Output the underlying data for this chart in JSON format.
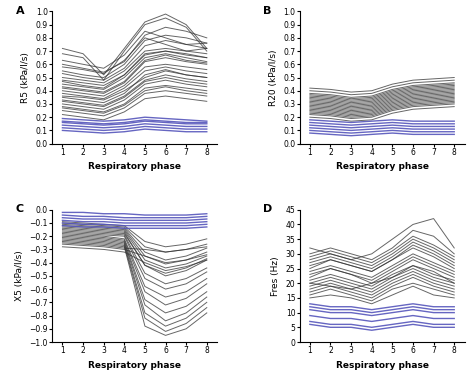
{
  "x": [
    1,
    2,
    3,
    4,
    5,
    6,
    7,
    8
  ],
  "xlim": [
    0.5,
    8.5
  ],
  "xticks": [
    1,
    2,
    3,
    4,
    5,
    6,
    7,
    8
  ],
  "xlabel": "Respiratory phase",
  "panels": {
    "A": {
      "label": "A",
      "ylabel": "R5 (kPa/l/s)",
      "ylim": [
        0.0,
        1.0
      ],
      "yticks": [
        0.0,
        0.1,
        0.2,
        0.3,
        0.4,
        0.5,
        0.6,
        0.7,
        0.8,
        0.9,
        1.0
      ],
      "black_lines": [
        [
          0.36,
          0.35,
          0.33,
          0.4,
          0.5,
          0.55,
          0.52,
          0.5
        ],
        [
          0.4,
          0.38,
          0.36,
          0.44,
          0.58,
          0.6,
          0.58,
          0.56
        ],
        [
          0.45,
          0.43,
          0.41,
          0.5,
          0.65,
          0.68,
          0.65,
          0.62
        ],
        [
          0.5,
          0.48,
          0.46,
          0.55,
          0.7,
          0.72,
          0.7,
          0.68
        ],
        [
          0.3,
          0.28,
          0.26,
          0.33,
          0.45,
          0.48,
          0.45,
          0.43
        ],
        [
          0.28,
          0.26,
          0.24,
          0.3,
          0.42,
          0.44,
          0.42,
          0.4
        ],
        [
          0.55,
          0.52,
          0.5,
          0.6,
          0.78,
          0.82,
          0.8,
          0.76
        ],
        [
          0.6,
          0.57,
          0.54,
          0.62,
          0.82,
          0.88,
          0.85,
          0.8
        ],
        [
          0.33,
          0.31,
          0.29,
          0.36,
          0.48,
          0.52,
          0.49,
          0.47
        ],
        [
          0.38,
          0.36,
          0.34,
          0.42,
          0.55,
          0.58,
          0.55,
          0.53
        ],
        [
          0.42,
          0.4,
          0.38,
          0.46,
          0.62,
          0.65,
          0.62,
          0.6
        ],
        [
          0.48,
          0.46,
          0.44,
          0.52,
          0.68,
          0.7,
          0.68,
          0.65
        ],
        [
          0.25,
          0.23,
          0.21,
          0.27,
          0.38,
          0.4,
          0.38,
          0.36
        ],
        [
          0.22,
          0.2,
          0.18,
          0.24,
          0.34,
          0.36,
          0.34,
          0.32
        ],
        [
          0.58,
          0.56,
          0.53,
          0.63,
          0.8,
          0.75,
          0.7,
          0.72
        ],
        [
          0.63,
          0.6,
          0.57,
          0.67,
          0.85,
          0.8,
          0.75,
          0.76
        ],
        [
          0.68,
          0.65,
          0.48,
          0.7,
          0.9,
          0.95,
          0.88,
          0.7
        ],
        [
          0.72,
          0.68,
          0.52,
          0.72,
          0.92,
          0.98,
          0.9,
          0.72
        ],
        [
          0.35,
          0.33,
          0.31,
          0.38,
          0.52,
          0.56,
          0.52,
          0.5
        ],
        [
          0.43,
          0.41,
          0.39,
          0.47,
          0.63,
          0.67,
          0.63,
          0.61
        ],
        [
          0.32,
          0.3,
          0.28,
          0.35,
          0.47,
          0.5,
          0.47,
          0.45
        ],
        [
          0.27,
          0.25,
          0.23,
          0.29,
          0.4,
          0.43,
          0.4,
          0.38
        ],
        [
          0.53,
          0.5,
          0.48,
          0.57,
          0.74,
          0.78,
          0.75,
          0.72
        ],
        [
          0.47,
          0.44,
          0.42,
          0.52,
          0.67,
          0.7,
          0.67,
          0.65
        ]
      ],
      "blue_lines": [
        [
          0.19,
          0.18,
          0.17,
          0.18,
          0.2,
          0.19,
          0.18,
          0.17
        ],
        [
          0.16,
          0.15,
          0.14,
          0.15,
          0.17,
          0.16,
          0.15,
          0.15
        ],
        [
          0.14,
          0.13,
          0.12,
          0.13,
          0.15,
          0.14,
          0.13,
          0.13
        ],
        [
          0.12,
          0.11,
          0.1,
          0.11,
          0.13,
          0.12,
          0.11,
          0.11
        ],
        [
          0.1,
          0.09,
          0.08,
          0.09,
          0.11,
          0.1,
          0.09,
          0.09
        ],
        [
          0.17,
          0.16,
          0.15,
          0.16,
          0.18,
          0.17,
          0.16,
          0.16
        ]
      ]
    },
    "B": {
      "label": "B",
      "ylabel": "R20 (kPa/l/s)",
      "ylim": [
        0.0,
        1.0
      ],
      "yticks": [
        0.0,
        0.1,
        0.2,
        0.3,
        0.4,
        0.5,
        0.6,
        0.7,
        0.8,
        0.9,
        1.0
      ],
      "black_lines": [
        [
          0.27,
          0.26,
          0.24,
          0.25,
          0.3,
          0.33,
          0.34,
          0.35
        ],
        [
          0.3,
          0.29,
          0.27,
          0.28,
          0.33,
          0.36,
          0.37,
          0.38
        ],
        [
          0.33,
          0.32,
          0.3,
          0.31,
          0.36,
          0.39,
          0.4,
          0.41
        ],
        [
          0.25,
          0.24,
          0.22,
          0.23,
          0.28,
          0.31,
          0.32,
          0.33
        ],
        [
          0.22,
          0.21,
          0.19,
          0.2,
          0.25,
          0.28,
          0.29,
          0.3
        ],
        [
          0.38,
          0.37,
          0.35,
          0.36,
          0.41,
          0.44,
          0.45,
          0.46
        ],
        [
          0.36,
          0.35,
          0.33,
          0.34,
          0.39,
          0.42,
          0.43,
          0.44
        ],
        [
          0.2,
          0.19,
          0.17,
          0.18,
          0.23,
          0.26,
          0.27,
          0.28
        ],
        [
          0.28,
          0.27,
          0.25,
          0.26,
          0.31,
          0.34,
          0.35,
          0.36
        ],
        [
          0.35,
          0.34,
          0.32,
          0.33,
          0.38,
          0.41,
          0.42,
          0.43
        ],
        [
          0.4,
          0.39,
          0.37,
          0.38,
          0.43,
          0.46,
          0.47,
          0.48
        ],
        [
          0.42,
          0.41,
          0.39,
          0.4,
          0.45,
          0.48,
          0.49,
          0.5
        ],
        [
          0.23,
          0.22,
          0.2,
          0.21,
          0.26,
          0.29,
          0.3,
          0.31
        ],
        [
          0.32,
          0.31,
          0.29,
          0.3,
          0.35,
          0.38,
          0.39,
          0.4
        ],
        [
          0.26,
          0.25,
          0.23,
          0.24,
          0.29,
          0.32,
          0.33,
          0.34
        ],
        [
          0.24,
          0.23,
          0.21,
          0.22,
          0.27,
          0.3,
          0.31,
          0.32
        ],
        [
          0.37,
          0.36,
          0.34,
          0.35,
          0.4,
          0.43,
          0.44,
          0.45
        ],
        [
          0.29,
          0.28,
          0.26,
          0.27,
          0.32,
          0.35,
          0.36,
          0.37
        ],
        [
          0.31,
          0.3,
          0.28,
          0.29,
          0.34,
          0.37,
          0.38,
          0.39
        ],
        [
          0.34,
          0.33,
          0.31,
          0.32,
          0.37,
          0.4,
          0.41,
          0.42
        ]
      ],
      "blue_lines": [
        [
          0.16,
          0.15,
          0.14,
          0.15,
          0.16,
          0.15,
          0.15,
          0.15
        ],
        [
          0.14,
          0.13,
          0.12,
          0.13,
          0.14,
          0.13,
          0.13,
          0.13
        ],
        [
          0.12,
          0.11,
          0.1,
          0.11,
          0.12,
          0.11,
          0.11,
          0.11
        ],
        [
          0.1,
          0.09,
          0.08,
          0.09,
          0.1,
          0.09,
          0.09,
          0.09
        ],
        [
          0.18,
          0.17,
          0.16,
          0.17,
          0.18,
          0.17,
          0.17,
          0.17
        ],
        [
          0.08,
          0.07,
          0.06,
          0.07,
          0.08,
          0.07,
          0.07,
          0.07
        ]
      ]
    },
    "C": {
      "label": "C",
      "ylabel": "X5 (kPa/l/s)",
      "ylim": [
        -1.0,
        0.0
      ],
      "yticks": [
        -1.0,
        -0.9,
        -0.8,
        -0.7,
        -0.6,
        -0.5,
        -0.4,
        -0.3,
        -0.2,
        -0.1,
        0.0
      ],
      "black_lines": [
        [
          -0.1,
          -0.11,
          -0.12,
          -0.13,
          -0.28,
          -0.32,
          -0.3,
          -0.26
        ],
        [
          -0.13,
          -0.14,
          -0.15,
          -0.16,
          -0.38,
          -0.44,
          -0.41,
          -0.35
        ],
        [
          -0.16,
          -0.17,
          -0.18,
          -0.19,
          -0.48,
          -0.56,
          -0.52,
          -0.44
        ],
        [
          -0.18,
          -0.19,
          -0.2,
          -0.22,
          -0.58,
          -0.66,
          -0.62,
          -0.52
        ],
        [
          -0.2,
          -0.21,
          -0.22,
          -0.24,
          -0.68,
          -0.78,
          -0.73,
          -0.62
        ],
        [
          -0.22,
          -0.23,
          -0.24,
          -0.26,
          -0.78,
          -0.88,
          -0.82,
          -0.7
        ],
        [
          -0.24,
          -0.25,
          -0.26,
          -0.28,
          -0.88,
          -0.95,
          -0.9,
          -0.78
        ],
        [
          -0.15,
          -0.16,
          -0.17,
          -0.18,
          -0.42,
          -0.5,
          -0.46,
          -0.38
        ],
        [
          -0.19,
          -0.2,
          -0.21,
          -0.23,
          -0.62,
          -0.72,
          -0.67,
          -0.56
        ],
        [
          -0.21,
          -0.22,
          -0.23,
          -0.25,
          -0.72,
          -0.84,
          -0.78,
          -0.66
        ],
        [
          -0.23,
          -0.24,
          -0.25,
          -0.27,
          -0.82,
          -0.92,
          -0.86,
          -0.74
        ],
        [
          -0.11,
          -0.12,
          -0.13,
          -0.14,
          -0.32,
          -0.38,
          -0.35,
          -0.29
        ],
        [
          -0.14,
          -0.15,
          -0.16,
          -0.17,
          -0.42,
          -0.48,
          -0.44,
          -0.37
        ],
        [
          -0.17,
          -0.18,
          -0.19,
          -0.2,
          -0.52,
          -0.6,
          -0.56,
          -0.47
        ],
        [
          -0.26,
          -0.27,
          -0.28,
          -0.3,
          -0.35,
          -0.4,
          -0.38,
          -0.34
        ],
        [
          -0.28,
          -0.29,
          -0.3,
          -0.32,
          -0.4,
          -0.46,
          -0.43,
          -0.38
        ],
        [
          -0.12,
          -0.13,
          -0.14,
          -0.15,
          -0.35,
          -0.41,
          -0.38,
          -0.32
        ],
        [
          -0.09,
          -0.1,
          -0.11,
          -0.12,
          -0.24,
          -0.28,
          -0.26,
          -0.22
        ],
        [
          -0.25,
          -0.26,
          -0.27,
          -0.29,
          -0.3,
          -0.32,
          -0.3,
          -0.28
        ]
      ],
      "blue_lines": [
        [
          -0.02,
          -0.02,
          -0.03,
          -0.03,
          -0.04,
          -0.04,
          -0.04,
          -0.03
        ],
        [
          -0.04,
          -0.05,
          -0.05,
          -0.06,
          -0.06,
          -0.06,
          -0.06,
          -0.05
        ],
        [
          -0.06,
          -0.07,
          -0.07,
          -0.08,
          -0.08,
          -0.08,
          -0.08,
          -0.07
        ],
        [
          -0.08,
          -0.09,
          -0.09,
          -0.1,
          -0.1,
          -0.1,
          -0.1,
          -0.09
        ],
        [
          -0.1,
          -0.11,
          -0.11,
          -0.12,
          -0.12,
          -0.12,
          -0.12,
          -0.11
        ],
        [
          -0.12,
          -0.13,
          -0.13,
          -0.14,
          -0.14,
          -0.14,
          -0.14,
          -0.13
        ]
      ]
    },
    "D": {
      "label": "D",
      "ylabel": "Fres (Hz)",
      "ylim": [
        0,
        45
      ],
      "yticks": [
        0,
        5,
        10,
        15,
        20,
        25,
        30,
        35,
        40,
        45
      ],
      "black_lines": [
        [
          20,
          22,
          20,
          18,
          22,
          25,
          22,
          20
        ],
        [
          22,
          25,
          23,
          20,
          24,
          28,
          25,
          22
        ],
        [
          25,
          28,
          26,
          24,
          28,
          32,
          29,
          25
        ],
        [
          28,
          30,
          28,
          26,
          30,
          35,
          32,
          28
        ],
        [
          30,
          32,
          30,
          28,
          32,
          38,
          36,
          30
        ],
        [
          18,
          20,
          18,
          16,
          20,
          23,
          20,
          18
        ],
        [
          16,
          18,
          16,
          14,
          18,
          20,
          18,
          16
        ],
        [
          32,
          30,
          28,
          30,
          35,
          40,
          42,
          32
        ],
        [
          24,
          26,
          24,
          22,
          26,
          30,
          27,
          24
        ],
        [
          26,
          28,
          26,
          24,
          28,
          33,
          30,
          26
        ],
        [
          19,
          21,
          19,
          17,
          21,
          24,
          21,
          19
        ],
        [
          21,
          23,
          21,
          19,
          23,
          26,
          23,
          21
        ],
        [
          23,
          25,
          23,
          21,
          25,
          29,
          26,
          23
        ],
        [
          27,
          29,
          27,
          25,
          29,
          34,
          31,
          27
        ],
        [
          29,
          31,
          29,
          27,
          31,
          36,
          33,
          29
        ],
        [
          17,
          19,
          17,
          15,
          19,
          22,
          19,
          17
        ],
        [
          15,
          16,
          15,
          13,
          16,
          19,
          16,
          15
        ],
        [
          20,
          19,
          18,
          20,
          22,
          26,
          24,
          20
        ]
      ],
      "blue_lines": [
        [
          13,
          12,
          12,
          11,
          12,
          13,
          12,
          12
        ],
        [
          11,
          10,
          10,
          9,
          10,
          11,
          10,
          10
        ],
        [
          9,
          8,
          8,
          7,
          8,
          9,
          8,
          8
        ],
        [
          7,
          6,
          6,
          5,
          6,
          7,
          6,
          6
        ],
        [
          12,
          11,
          11,
          10,
          11,
          12,
          11,
          11
        ],
        [
          6,
          5,
          5,
          4,
          5,
          6,
          5,
          5
        ]
      ]
    }
  },
  "black_color": "#333333",
  "blue_color": "#5555bb",
  "line_alpha": 0.75,
  "line_width": 0.7,
  "bg_color": "#ffffff",
  "label_fontsize": 6.5,
  "tick_fontsize": 5.5,
  "panel_label_fontsize": 8
}
